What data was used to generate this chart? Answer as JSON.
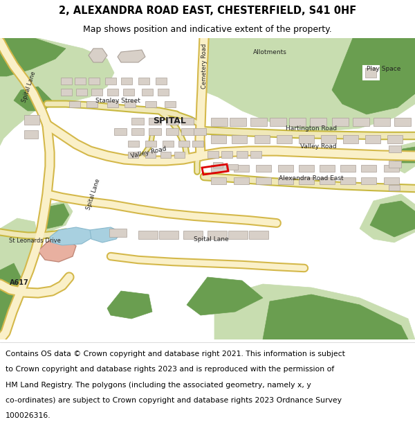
{
  "title": "2, ALEXANDRA ROAD EAST, CHESTERFIELD, S41 0HF",
  "subtitle": "Map shows position and indicative extent of the property.",
  "footer_line1": "Contains OS data © Crown copyright and database right 2021. This information is subject",
  "footer_line2": "to Crown copyright and database rights 2023 and is reproduced with the permission of",
  "footer_line3": "HM Land Registry. The polygons (including the associated geometry, namely x, y",
  "footer_line4": "co-ordinates) are subject to Crown copyright and database rights 2023 Ordnance Survey",
  "footer_line5": "100026316.",
  "map_bg": "#f0ede6",
  "road_fill": "#faf0c8",
  "road_stroke": "#d4b84a",
  "green_light": "#c8ddb0",
  "green_dark": "#6a9e50",
  "building_fill": "#d8d0c8",
  "building_stroke": "#aaa098",
  "water_color": "#a8d0e0",
  "salmon_color": "#e8b0a0",
  "highlight_color": "#dd0000",
  "title_fontsize": 10.5,
  "subtitle_fontsize": 9,
  "footer_fontsize": 7.8,
  "map_label_size": 6.5,
  "map_label_color": "#222222"
}
